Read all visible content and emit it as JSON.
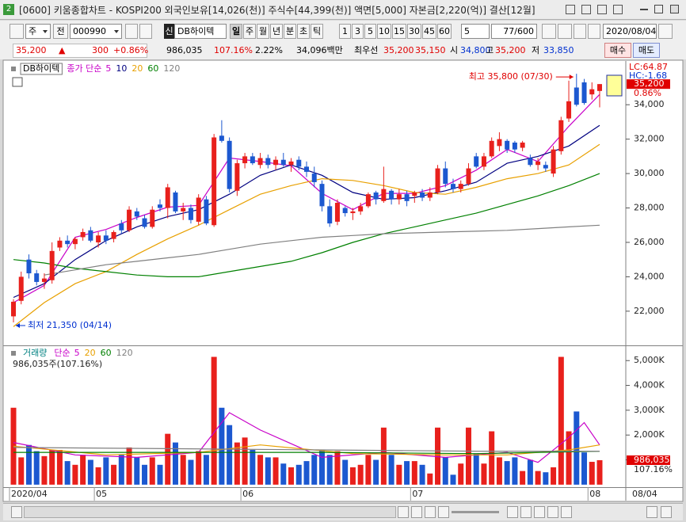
{
  "window": {
    "number": "2",
    "title": "[0600] 키움종합차트 - KOSPI200 외국인보유[14,026(천)] 주식수[44,399(천)] 액면[5,000] 자본금[2,220(억)] 결산[12월]"
  },
  "toolbar": {
    "market": "주",
    "scope": "전",
    "code": "000990",
    "flag": "신",
    "name": "DB하이텍",
    "period_buttons": [
      "일",
      "주",
      "월",
      "년",
      "분",
      "초",
      "틱"
    ],
    "interval_buttons": [
      "1",
      "3",
      "5",
      "10",
      "15",
      "30",
      "45",
      "60"
    ],
    "interval": "5",
    "count": "77/600",
    "date": "2020/08/04"
  },
  "quote": {
    "price": "35,200",
    "arrow": "▲",
    "change": "300",
    "change_pct": "+0.86%",
    "volume": "986,035",
    "volume_ratio": "107.16%",
    "turnover": "2.22%",
    "amount": "34,096백만",
    "best_label": "최우선",
    "best_ask": "35,200",
    "best_bid": "35,150",
    "open_label": "시",
    "open": "34,800",
    "high_label": "고",
    "high": "35,200",
    "low_label": "저",
    "low": "33,850",
    "buy": "매수",
    "sell": "매도"
  },
  "chart_data": [
    {
      "type": "candlestick",
      "legend": {
        "name": "DB하이텍",
        "label": "종가 단순",
        "boxed": true,
        "name_color": "#000000"
      },
      "up_color": "#e8201c",
      "down_color": "#1c58d0",
      "open": [
        21700,
        22600,
        25000,
        24200,
        23700,
        23800,
        25700,
        26100,
        25900,
        26300,
        26700,
        26000,
        26400,
        26200,
        27100,
        26700,
        27800,
        27400,
        26900,
        28200,
        28000,
        28900,
        27800,
        28000,
        27200,
        28500,
        27000,
        32200,
        31900,
        29000,
        30600,
        31000,
        30500,
        30900,
        30500,
        30800,
        30500,
        30800,
        30400,
        30000,
        29400,
        28100,
        27200,
        28000,
        27700,
        27800,
        28100,
        28900,
        28400,
        29000,
        28500,
        28800,
        28700,
        28900,
        28600,
        28900,
        30300,
        29400,
        29100,
        29400,
        31000,
        30400,
        31000,
        31600,
        31900,
        31800,
        31500,
        30900,
        30500,
        30500,
        30000,
        31300,
        33200,
        35000,
        35300,
        34600,
        34800
      ],
      "high": [
        22700,
        24300,
        25300,
        24400,
        24200,
        26000,
        26300,
        26400,
        26300,
        26800,
        26900,
        26600,
        26700,
        26700,
        27300,
        28100,
        28000,
        27600,
        28100,
        28500,
        29400,
        29000,
        28300,
        28200,
        28800,
        28700,
        32300,
        33100,
        32100,
        30800,
        31200,
        31200,
        31200,
        31100,
        31000,
        31200,
        30900,
        31000,
        30700,
        30400,
        29600,
        28500,
        28500,
        28100,
        28000,
        28300,
        28900,
        29000,
        30400,
        29100,
        29100,
        29000,
        29000,
        29100,
        29200,
        30500,
        30700,
        29700,
        29600,
        30600,
        31200,
        31200,
        32100,
        32400,
        32000,
        31900,
        31900,
        31100,
        30900,
        30700,
        31600,
        33300,
        35400,
        35800,
        35500,
        35300,
        35200
      ],
      "low": [
        21350,
        22400,
        23900,
        23500,
        23300,
        23600,
        25500,
        25700,
        25600,
        26100,
        26000,
        25700,
        25900,
        26000,
        26500,
        26600,
        27300,
        26800,
        26800,
        27800,
        27400,
        27700,
        27300,
        27100,
        27000,
        27000,
        26900,
        31800,
        28900,
        28700,
        30300,
        30500,
        30300,
        30300,
        30200,
        30400,
        30100,
        30200,
        29800,
        29200,
        27800,
        26900,
        27000,
        27500,
        27300,
        27600,
        28000,
        28200,
        28300,
        28200,
        28200,
        28100,
        28300,
        28400,
        28400,
        28800,
        29200,
        28900,
        28900,
        29300,
        30300,
        30200,
        30900,
        31300,
        31200,
        31200,
        31300,
        30400,
        30200,
        30100,
        29800,
        31100,
        33000,
        33900,
        34000,
        34300,
        33850
      ],
      "close": [
        22550,
        24000,
        24200,
        23700,
        23900,
        25500,
        26100,
        25900,
        26200,
        26600,
        26100,
        26400,
        26100,
        26600,
        26700,
        27900,
        27500,
        26900,
        27900,
        28000,
        29200,
        27800,
        28000,
        27300,
        28600,
        27100,
        32100,
        31900,
        29100,
        30600,
        31000,
        30600,
        30900,
        30500,
        30800,
        30500,
        30700,
        30400,
        30100,
        29500,
        28100,
        27100,
        28300,
        27700,
        27800,
        28100,
        28800,
        28500,
        29100,
        28500,
        28800,
        28400,
        28900,
        28600,
        28900,
        30300,
        29400,
        29100,
        29400,
        30300,
        30400,
        31000,
        31900,
        32000,
        31400,
        31400,
        31800,
        30500,
        30700,
        30300,
        31400,
        33100,
        34200,
        34000,
        34100,
        34900,
        35200
      ],
      "ylim": [
        20060,
        36450
      ],
      "yticks": [
        {
          "value": 22000,
          "label": "22,000"
        },
        {
          "value": 24000,
          "label": "24,000"
        },
        {
          "value": 26000,
          "label": "26,000"
        },
        {
          "value": 28000,
          "label": "28,000"
        },
        {
          "value": 30000,
          "label": "30,000"
        },
        {
          "value": 32000,
          "label": "32,000"
        },
        {
          "value": 34000,
          "label": "34,000"
        }
      ],
      "ma": [
        {
          "name": "5",
          "color": "#c800c8",
          "x": [
            0,
            4,
            8,
            12,
            16,
            20,
            24,
            28,
            32,
            36,
            40,
            44,
            48,
            52,
            56,
            60,
            64,
            68,
            72,
            76
          ],
          "values": [
            22500,
            23500,
            26300,
            26750,
            27450,
            28050,
            28150,
            30900,
            30700,
            30450,
            28850,
            27900,
            28850,
            28850,
            29300,
            30200,
            31400,
            30700,
            32750,
            34600
          ]
        },
        {
          "name": "10",
          "color": "#000080",
          "x": [
            0,
            4,
            8,
            12,
            16,
            20,
            24,
            28,
            32,
            36,
            40,
            44,
            48,
            52,
            56,
            60,
            64,
            68,
            72,
            76
          ],
          "values": [
            22800,
            23600,
            25000,
            26100,
            26900,
            27500,
            27900,
            28800,
            29900,
            30500,
            29900,
            28900,
            28500,
            28600,
            29000,
            29500,
            30600,
            31000,
            31600,
            32800
          ]
        },
        {
          "name": "20",
          "color": "#e8a000",
          "x": [
            0,
            4,
            8,
            12,
            16,
            20,
            24,
            28,
            32,
            36,
            40,
            44,
            48,
            52,
            56,
            60,
            64,
            68,
            72,
            76
          ],
          "values": [
            21100,
            22500,
            23600,
            24300,
            25300,
            26200,
            27000,
            27900,
            28800,
            29300,
            29700,
            29600,
            29300,
            28900,
            28800,
            29200,
            29700,
            30000,
            30500,
            31700
          ]
        },
        {
          "name": "60",
          "color": "#008000",
          "x": [
            0,
            4,
            8,
            12,
            16,
            20,
            24,
            28,
            32,
            36,
            40,
            44,
            48,
            52,
            56,
            60,
            64,
            68,
            72,
            76
          ],
          "values": [
            25000,
            24800,
            24500,
            24300,
            24100,
            24000,
            24000,
            24300,
            24600,
            24900,
            25400,
            26000,
            26500,
            26900,
            27300,
            27700,
            28200,
            28700,
            29300,
            30000
          ]
        },
        {
          "name": "120",
          "color": "#808080",
          "x": [
            4,
            8,
            12,
            16,
            20,
            24,
            28,
            32,
            36,
            40,
            44,
            48,
            52,
            56,
            60,
            64,
            68,
            72,
            76
          ],
          "values": [
            24100,
            24400,
            24700,
            24900,
            25100,
            25300,
            25600,
            25900,
            26100,
            26300,
            26400,
            26500,
            26550,
            26600,
            26650,
            26700,
            26800,
            26900,
            27000
          ]
        }
      ],
      "annotations": [
        {
          "text": "최고 35,800 (07/30)",
          "x": 73,
          "y": 35800,
          "color": "#e00000"
        },
        {
          "text": "최저 21,350 (04/14)",
          "x": 0,
          "y": 21350,
          "color": "#0030d0"
        }
      ],
      "side_labels": [
        {
          "text": "LC:64.87",
          "color": "#e00000"
        },
        {
          "text": "HC:-1.68",
          "color": "#0030d0"
        }
      ],
      "last_price": {
        "value": 35200,
        "label": "35,200"
      },
      "last_change": "0.86%"
    },
    {
      "type": "bar",
      "legend": {
        "name": "거래량",
        "label": "단순",
        "boxed": false,
        "name_color": "#008080"
      },
      "subtitle": "986,035주(107.16%)",
      "categories": [
        "2020/04",
        null,
        null,
        null,
        null,
        null,
        null,
        null,
        null,
        null,
        null,
        "05",
        null,
        null,
        null,
        null,
        null,
        null,
        null,
        null,
        null,
        null,
        null,
        null,
        null,
        null,
        null,
        null,
        null,
        null,
        "06",
        null,
        null,
        null,
        null,
        null,
        null,
        null,
        null,
        null,
        null,
        null,
        null,
        null,
        null,
        null,
        null,
        null,
        null,
        null,
        null,
        null,
        "07",
        null,
        null,
        null,
        null,
        null,
        null,
        null,
        null,
        null,
        null,
        null,
        null,
        null,
        null,
        null,
        null,
        null,
        null,
        null,
        null,
        null,
        null,
        "08",
        null
      ],
      "values": [
        3100000,
        1100000,
        1600000,
        1350000,
        1150000,
        1400000,
        1400000,
        950000,
        800000,
        1200000,
        1000000,
        700000,
        1100000,
        800000,
        1200000,
        1500000,
        1100000,
        800000,
        1100000,
        800000,
        2050000,
        1700000,
        1200000,
        1000000,
        1350000,
        1200000,
        5150000,
        3100000,
        2400000,
        1700000,
        1900000,
        1400000,
        1200000,
        1100000,
        1100000,
        850000,
        700000,
        800000,
        950000,
        1200000,
        1400000,
        1200000,
        1350000,
        1000000,
        700000,
        800000,
        1200000,
        1000000,
        2300000,
        1200000,
        800000,
        950000,
        950000,
        800000,
        450000,
        2300000,
        1100000,
        400000,
        850000,
        2300000,
        1250000,
        850000,
        2150000,
        1100000,
        950000,
        1100000,
        550000,
        1000000,
        550000,
        500000,
        700000,
        5150000,
        2150000,
        2950000,
        1300000,
        920150,
        986035
      ],
      "ylim": [
        -100000,
        5550000
      ],
      "yticks": [
        {
          "value": 1000000,
          "label": "1,000K"
        },
        {
          "value": 2000000,
          "label": "2,000K"
        },
        {
          "value": 3000000,
          "label": "3,000K"
        },
        {
          "value": 4000000,
          "label": "4,000K"
        },
        {
          "value": 5000000,
          "label": "5,000K"
        }
      ],
      "ma": [
        {
          "name": "5",
          "color": "#c800c8",
          "x": [
            0,
            8,
            16,
            24,
            28,
            32,
            40,
            48,
            56,
            64,
            68,
            72,
            74,
            76
          ],
          "values": [
            1700000,
            1200000,
            1100000,
            1300000,
            2900000,
            2200000,
            1100000,
            1300000,
            1100000,
            1300000,
            900000,
            1900000,
            2500000,
            1600000
          ]
        },
        {
          "name": "20",
          "color": "#e8a000",
          "x": [
            0,
            12,
            24,
            32,
            44,
            56,
            64,
            72,
            76
          ],
          "values": [
            1550000,
            1200000,
            1300000,
            1600000,
            1250000,
            1200000,
            1200000,
            1400000,
            1600000
          ]
        },
        {
          "name": "60",
          "color": "#008000",
          "x": [
            0,
            20,
            40,
            60,
            76
          ],
          "values": [
            1300000,
            1300000,
            1300000,
            1250000,
            1350000
          ]
        },
        {
          "name": "120",
          "color": "#808080",
          "x": [
            0,
            20,
            40,
            60,
            76
          ],
          "values": [
            1500000,
            1450000,
            1400000,
            1350000,
            1350000
          ]
        }
      ],
      "last_value": {
        "value": 986035,
        "label": "986,035"
      },
      "last_ratio": "107.16%",
      "last_date": "08/04"
    }
  ]
}
